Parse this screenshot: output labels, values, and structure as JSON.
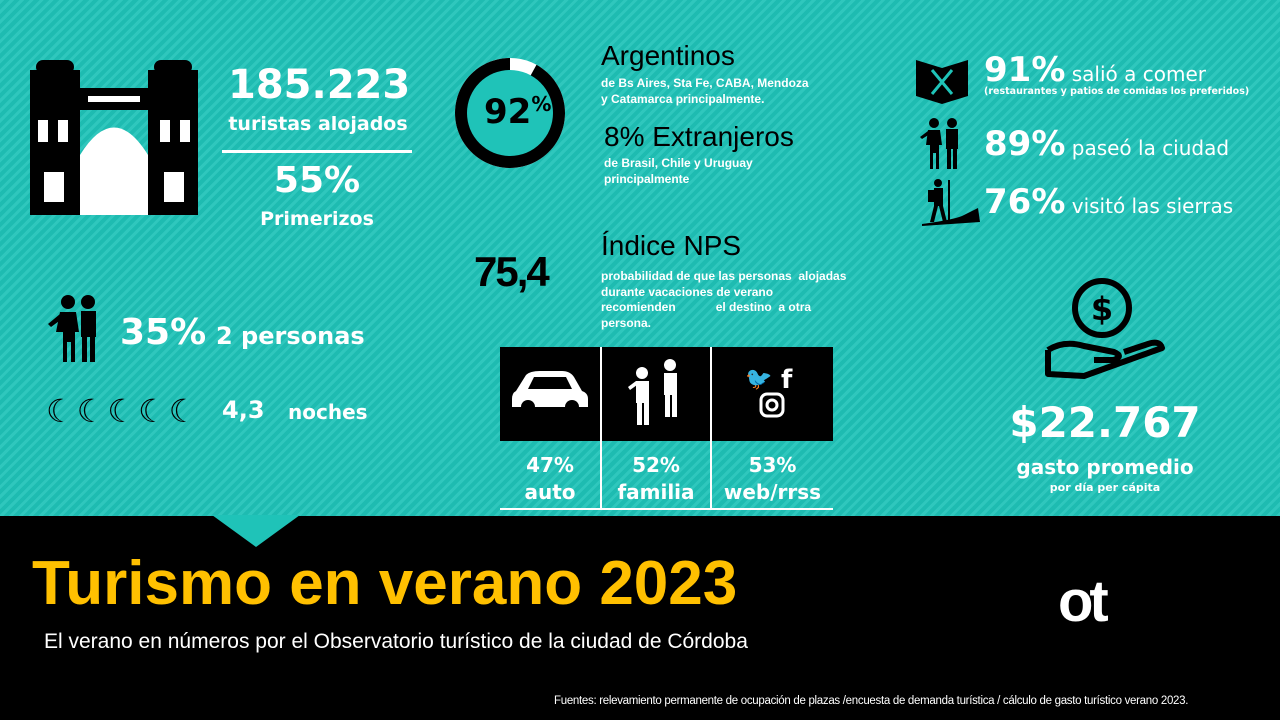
{
  "tourists": {
    "count": "185.223",
    "label": "turistas alojados",
    "first_timers_pct": "55%",
    "first_timers_label": "Primerizos"
  },
  "origin": {
    "argentinos_pct": "92",
    "pct_sign": "%",
    "argentinos_label": "Argentinos",
    "argentinos_desc_1": "de Bs Aires, Sta Fe, CABA, Mendoza",
    "argentinos_desc_2": "y Catamarca principalmente.",
    "extranjeros_label": "8% Extranjeros",
    "extranjeros_desc_1": "de Brasil, Chile y Uruguay",
    "extranjeros_desc_2": "principalmente",
    "argentinos_fraction": 0.92
  },
  "nps": {
    "value": "75,4",
    "title": "Índice NPS",
    "desc_1": "probabilidad de que las personas  alojadas",
    "desc_2": "durante vacaciones de verano",
    "desc_3": "recomienden            el destino  a otra",
    "desc_4": "persona."
  },
  "group": {
    "pct": "35%",
    "label": "2 personas"
  },
  "nights": {
    "value": "4,3",
    "label": "noches"
  },
  "transport": [
    {
      "pct": "47%",
      "label": "auto",
      "icon": "car-icon"
    },
    {
      "pct": "52%",
      "label": "familia",
      "icon": "family-icon"
    },
    {
      "pct": "53%",
      "label": "web/rrss",
      "icon": "social-media-icon"
    }
  ],
  "activities": [
    {
      "pct": "91%",
      "label": "salió a comer",
      "note": "(restaurantes y patios de comidas los preferidos)",
      "icon": "restaurant-icon"
    },
    {
      "pct": "89%",
      "label": "paseó la ciudad",
      "icon": "couple-sightseeing-icon"
    },
    {
      "pct": "76%",
      "label": "visitó las sierras",
      "icon": "hiker-icon"
    }
  ],
  "spending": {
    "amount": "$22.767",
    "label": "gasto promedio",
    "sub": "por día per cápita"
  },
  "footer": {
    "title": "Turismo en verano 2023",
    "subtitle": "El verano en números por el Observatorio turístico de la ciudad de Córdoba",
    "sources": "Fuentes: relevamiento permanente de ocupación de plazas /encuesta de demanda turística / cálculo de gasto turístico verano 2023.",
    "logo": "ot"
  },
  "colors": {
    "teal": "#1fc3b8",
    "yellow": "#ffc000"
  }
}
